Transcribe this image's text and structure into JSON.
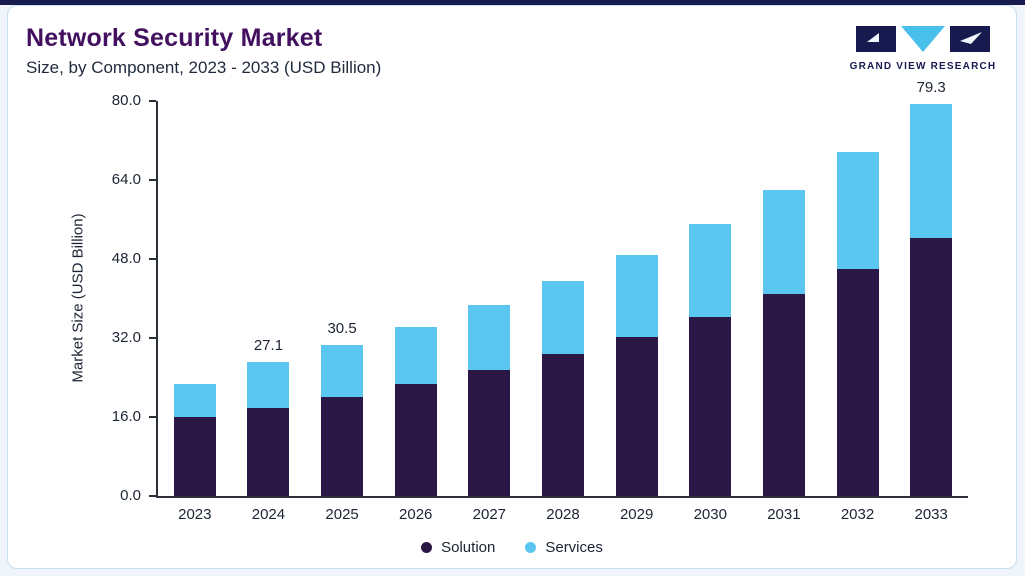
{
  "page": {
    "title": "Network Security Market",
    "subtitle": "Size, by Component, 2023 - 2033 (USD Billion)",
    "brand": {
      "name": "GRAND VIEW RESEARCH"
    }
  },
  "colors": {
    "accent_bar": "#171a4f",
    "title": "#43105f",
    "solution": "#2b1745",
    "services": "#5bc7f0",
    "axis": "#2a2f3a",
    "card_border": "#c9dff0",
    "background": "#eff5fa"
  },
  "chart_data": {
    "type": "bar",
    "stacked": true,
    "title": "Network Security Market Size, by Component, 2023 - 2033 (USD Billion)",
    "categories": [
      "2023",
      "2024",
      "2025",
      "2026",
      "2027",
      "2028",
      "2029",
      "2030",
      "2031",
      "2032",
      "2033"
    ],
    "series": [
      {
        "name": "Solution",
        "color": "#2b1745",
        "values": [
          16.0,
          17.9,
          20.1,
          22.6,
          25.5,
          28.7,
          32.3,
          36.3,
          40.9,
          46.0,
          52.3
        ]
      },
      {
        "name": "Services",
        "color": "#5bc7f0",
        "values": [
          6.6,
          9.2,
          10.4,
          11.7,
          13.1,
          14.8,
          16.6,
          18.7,
          21.0,
          23.7,
          27.0
        ]
      }
    ],
    "totals": [
      22.6,
      27.1,
      30.5,
      34.3,
      38.6,
      43.5,
      48.9,
      55.0,
      61.9,
      69.7,
      79.3
    ],
    "bar_labels": [
      "",
      "27.1",
      "30.5",
      "",
      "",
      "",
      "",
      "",
      "",
      "",
      "79.3"
    ],
    "xlabel": "",
    "ylabel": "Market Size (USD Billion)",
    "ylim": [
      0,
      80
    ],
    "yticks": [
      0,
      16,
      32,
      48,
      64,
      80
    ],
    "ytick_labels": [
      "0.0",
      "16.0",
      "32.0",
      "48.0",
      "64.0",
      "80.0"
    ],
    "grid": false,
    "legend": [
      "Solution",
      "Services"
    ],
    "legend_position": "bottom"
  }
}
